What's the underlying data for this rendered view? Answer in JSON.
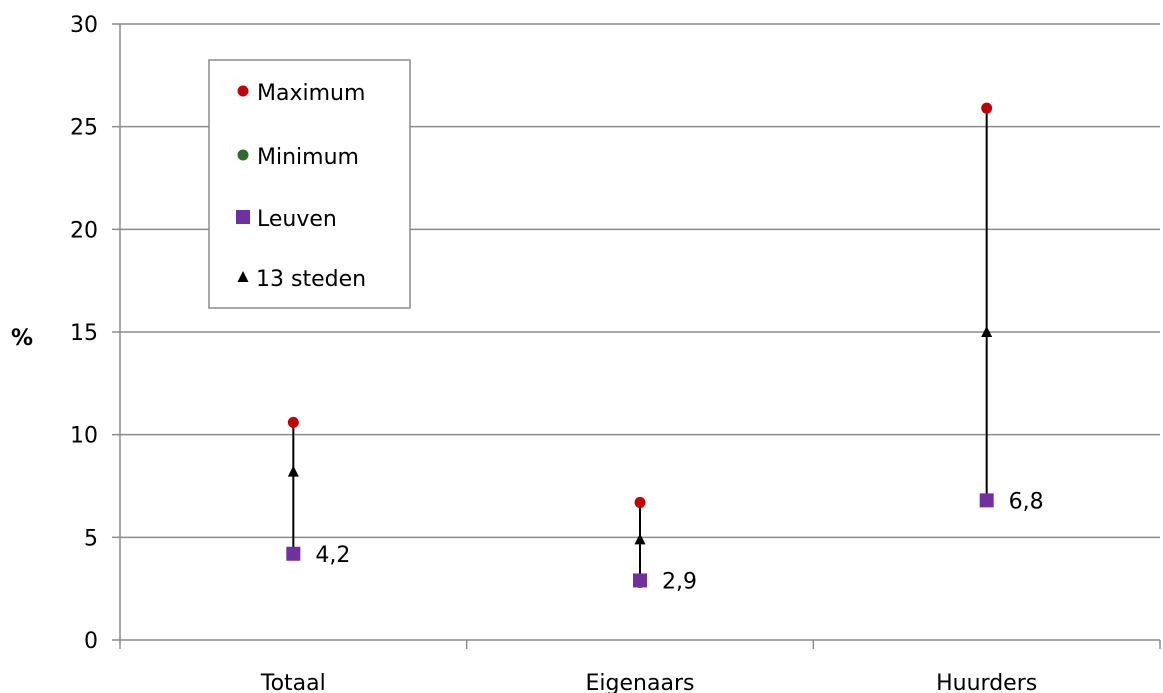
{
  "chart_data": {
    "type": "scatter",
    "title": "",
    "xlabel": "",
    "ylabel": "%",
    "ylim": [
      0,
      30
    ],
    "yticks": [
      0,
      5,
      10,
      15,
      20,
      25,
      30
    ],
    "grid": true,
    "legend_position": "top-left",
    "categories": [
      "Totaal",
      "Eigenaars",
      "Huurders"
    ],
    "series": [
      {
        "name": "Maximum",
        "marker": "circle",
        "color": "#c00000",
        "values": [
          10.6,
          6.7,
          25.9
        ]
      },
      {
        "name": "Minimum",
        "marker": "circle",
        "color": "#2e6b2e",
        "values": [
          4.2,
          2.8,
          6.8
        ]
      },
      {
        "name": "Leuven",
        "marker": "square",
        "color": "#7030a0",
        "values": [
          4.2,
          2.9,
          6.8
        ]
      },
      {
        "name": "13 steden",
        "marker": "triangle",
        "color": "#000000",
        "values": [
          8.2,
          4.9,
          15.0
        ]
      }
    ],
    "data_labels": [
      "4,2",
      "2,9",
      "6,8"
    ]
  }
}
